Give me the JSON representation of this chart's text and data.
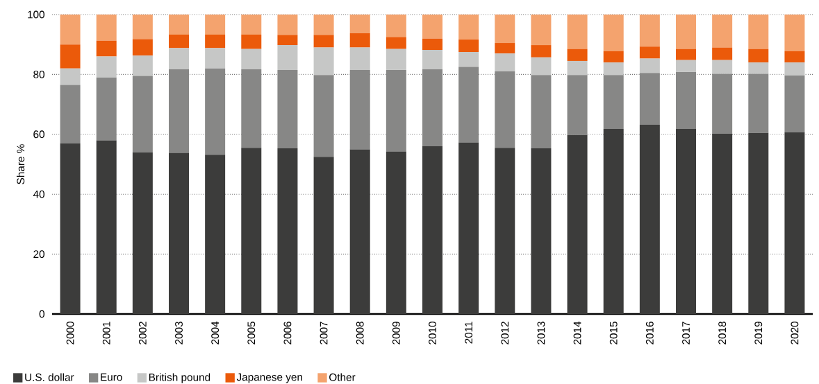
{
  "chart_data": {
    "type": "bar",
    "stacked": true,
    "ylabel": "Share %",
    "categories": [
      "2000",
      "2001",
      "2002",
      "2003",
      "2004",
      "2005",
      "2006",
      "2007",
      "2008",
      "2009",
      "2010",
      "2011",
      "2012",
      "2013",
      "2014",
      "2015",
      "2016",
      "2017",
      "2018",
      "2019",
      "2020"
    ],
    "series": [
      {
        "name": "U.S. dollar",
        "color": "#3c3c3b",
        "values": [
          57,
          58,
          54,
          53.8,
          53.2,
          55.5,
          55.3,
          52.5,
          55,
          54.3,
          56,
          57.3,
          55.5,
          55.3,
          59.8,
          61.8,
          63.2,
          61.8,
          60.2,
          60.5,
          60.7
        ]
      },
      {
        "name": "Euro",
        "color": "#878786",
        "values": [
          19.5,
          21,
          25.5,
          27.9,
          28.8,
          26.2,
          26.2,
          27.3,
          26.5,
          27.2,
          25.7,
          25.2,
          25.5,
          24.5,
          20,
          18,
          17.3,
          19,
          20,
          19.7,
          19
        ]
      },
      {
        "name": "British pound",
        "color": "#c6c7c6",
        "values": [
          5.5,
          7,
          6.8,
          7.1,
          6.8,
          6.8,
          8.3,
          9.2,
          7.5,
          7,
          6.5,
          5,
          6,
          5.9,
          4.7,
          4.2,
          4.8,
          4,
          4.6,
          3.8,
          4.3
        ]
      },
      {
        "name": "Japanese yen",
        "color": "#eb5a0a",
        "values": [
          8,
          5.3,
          5.5,
          4.5,
          4.5,
          4.8,
          3.4,
          4.2,
          4.8,
          4,
          3.8,
          4.2,
          3.5,
          4.1,
          4,
          3.8,
          4,
          3.7,
          4.2,
          4.5,
          3.8
        ]
      },
      {
        "name": "Other",
        "color": "#f4a36e",
        "values": [
          10,
          8.7,
          8.2,
          6.7,
          6.7,
          6.7,
          6.8,
          6.8,
          6.2,
          7.5,
          8,
          8.3,
          9.5,
          10.2,
          11.5,
          12.2,
          10.7,
          11.5,
          11,
          11.5,
          12.2
        ]
      }
    ],
    "ylim": [
      0,
      100
    ],
    "yticks": [
      0,
      20,
      40,
      60,
      80,
      100
    ],
    "grid": "y",
    "legend": "bottom"
  }
}
